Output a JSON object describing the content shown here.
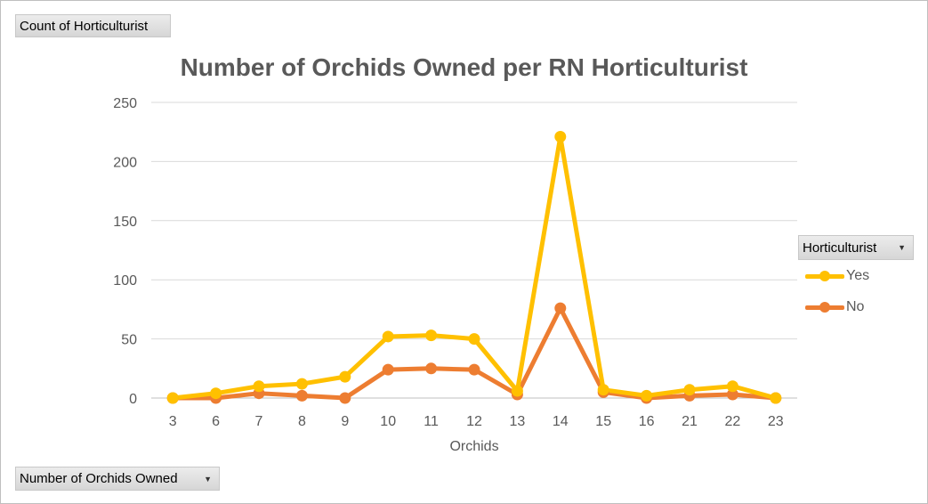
{
  "pivot": {
    "value_field": "Count of Horticulturist",
    "axis_field": "Number of Orchids Owned",
    "legend_field": "Horticulturist"
  },
  "chart_data": {
    "type": "line",
    "title": "Number of Orchids Owned per RN Horticulturist",
    "xlabel": "Orchids",
    "ylabel": "",
    "categories": [
      "3",
      "6",
      "7",
      "8",
      "9",
      "10",
      "11",
      "12",
      "13",
      "14",
      "15",
      "16",
      "21",
      "22",
      "23"
    ],
    "ylim": [
      0,
      250
    ],
    "yticks": [
      0,
      50,
      100,
      150,
      200,
      250
    ],
    "grid": true,
    "legend_position": "right",
    "series": [
      {
        "name": "Yes",
        "color": "#FFC000",
        "values": [
          0,
          4,
          10,
          12,
          18,
          52,
          53,
          50,
          6,
          221,
          7,
          2,
          7,
          10,
          0
        ]
      },
      {
        "name": "No",
        "color": "#ED7D31",
        "values": [
          0,
          0,
          4,
          2,
          0,
          24,
          25,
          24,
          3,
          76,
          5,
          0,
          2,
          3,
          0
        ]
      }
    ]
  }
}
